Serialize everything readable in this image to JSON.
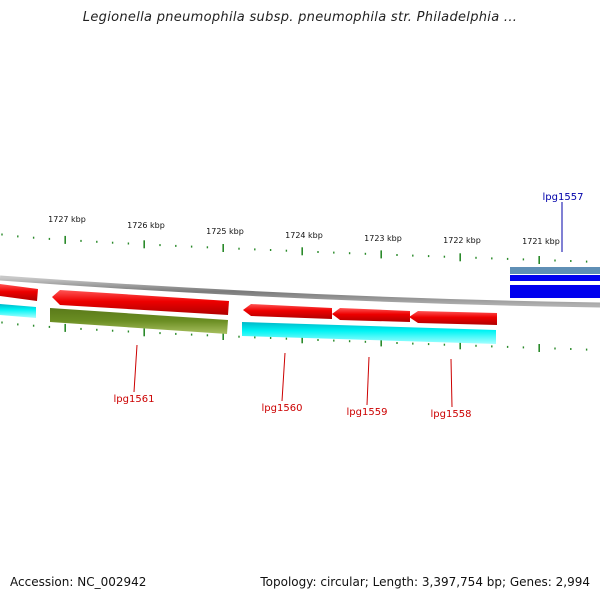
{
  "title": "Legionella pneumophila subsp. pneumophila str. Philadelphia ...",
  "footer": {
    "accession": "Accession: NC_002942",
    "summary": "Topology: circular; Length: 3,397,754 bp; Genes: 2,994"
  },
  "colors": {
    "backbone": "#8a8a8a",
    "tick": "#2a8a2a",
    "label_red": "#cc0000",
    "label_blue": "#0000aa",
    "forward_red": "#ff0000",
    "reverse_cyan": "#00f0f0",
    "reverse_olive": "#6b8e23",
    "forward_blue": "#0000ee",
    "forward_steel": "#5f8fb5"
  },
  "ticks": [
    "1727 kbp",
    "1726 kbp",
    "1725 kbp",
    "1724 kbp",
    "1723 kbp",
    "1722 kbp",
    "1721 kbp"
  ],
  "genes": [
    {
      "name": "lpg1561",
      "label_color": "red"
    },
    {
      "name": "lpg1560",
      "label_color": "red"
    },
    {
      "name": "lpg1559",
      "label_color": "red"
    },
    {
      "name": "lpg1558",
      "label_color": "red"
    },
    {
      "name": "lpg1557",
      "label_color": "blue"
    }
  ]
}
